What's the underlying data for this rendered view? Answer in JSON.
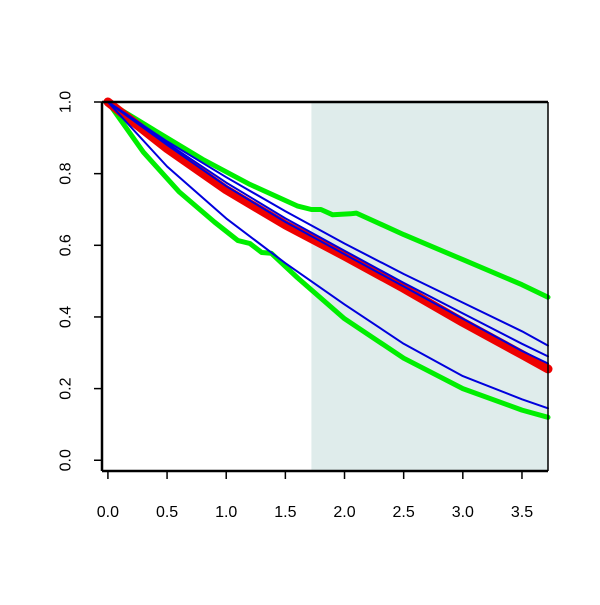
{
  "chart_data": {
    "type": "line",
    "title": "",
    "xlabel": "",
    "ylabel": "",
    "xlim": [
      -0.05,
      3.72
    ],
    "ylim": [
      -0.03,
      1.0
    ],
    "x_ticks": [
      "0.0",
      "0.5",
      "1.0",
      "1.5",
      "2.0",
      "2.5",
      "3.0",
      "3.5"
    ],
    "y_ticks": [
      "0.0",
      "0.2",
      "0.4",
      "0.6",
      "0.8",
      "1.0"
    ],
    "shaded_region": {
      "x_from": 1.72,
      "x_to": 3.72,
      "color": "#dfeceb"
    },
    "grid": false,
    "series": [
      {
        "color": "#00ee00",
        "style": "thick",
        "x": [
          0.0,
          0.4,
          0.8,
          1.2,
          1.6,
          1.72,
          1.8,
          1.9,
          2.05,
          2.1,
          2.5,
          3.0,
          3.5,
          3.72
        ],
        "y": [
          1.0,
          0.92,
          0.84,
          0.77,
          0.71,
          0.7,
          0.7,
          0.685,
          0.688,
          0.69,
          0.63,
          0.56,
          0.49,
          0.455
        ]
      },
      {
        "color": "#00ee00",
        "style": "thick",
        "x": [
          0.0,
          0.3,
          0.6,
          0.9,
          1.1,
          1.2,
          1.3,
          1.38,
          1.6,
          2.0,
          2.5,
          3.0,
          3.5,
          3.72
        ],
        "y": [
          1.0,
          0.86,
          0.75,
          0.665,
          0.613,
          0.605,
          0.58,
          0.578,
          0.51,
          0.395,
          0.285,
          0.2,
          0.14,
          0.12
        ]
      },
      {
        "color": "#ee0000",
        "style": "band",
        "x": [
          0.0,
          0.5,
          1.0,
          1.5,
          2.0,
          2.5,
          3.0,
          3.5,
          3.72
        ],
        "y": [
          1.0,
          0.87,
          0.755,
          0.657,
          0.57,
          0.48,
          0.385,
          0.295,
          0.255
        ]
      },
      {
        "color": "#0000dd",
        "style": "thin",
        "x": [
          0.0,
          0.5,
          1.0,
          1.5,
          2.0,
          2.5,
          3.0,
          3.5,
          3.72
        ],
        "y": [
          1.0,
          0.89,
          0.79,
          0.695,
          0.605,
          0.52,
          0.44,
          0.36,
          0.32
        ]
      },
      {
        "color": "#0000dd",
        "style": "thin",
        "x": [
          0.0,
          0.5,
          1.0,
          1.5,
          2.0,
          2.5,
          3.0,
          3.5,
          3.72
        ],
        "y": [
          1.0,
          0.885,
          0.775,
          0.675,
          0.585,
          0.495,
          0.41,
          0.325,
          0.29
        ]
      },
      {
        "color": "#0000dd",
        "style": "thin",
        "x": [
          0.0,
          0.5,
          1.0,
          1.5,
          2.0,
          2.5,
          3.0,
          3.5,
          3.72
        ],
        "y": [
          1.0,
          0.88,
          0.765,
          0.665,
          0.575,
          0.485,
          0.395,
          0.305,
          0.27
        ]
      },
      {
        "color": "#0000dd",
        "style": "thin",
        "x": [
          0.0,
          0.5,
          1.0,
          1.5,
          2.0,
          2.5,
          3.0,
          3.5,
          3.72
        ],
        "y": [
          1.0,
          0.82,
          0.675,
          0.55,
          0.435,
          0.325,
          0.235,
          0.17,
          0.145
        ]
      }
    ]
  }
}
